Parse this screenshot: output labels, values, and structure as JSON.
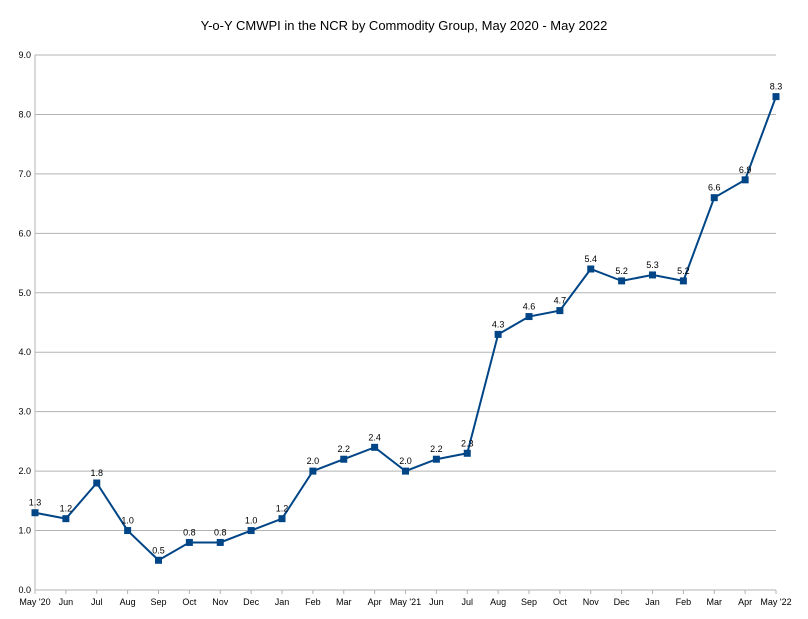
{
  "chart_data": {
    "type": "line",
    "title": "Y-o-Y CMWPI in the NCR by Commodity Group, May 2020 - May 2022",
    "xlabel": "",
    "ylabel": "",
    "ylim": [
      0,
      9
    ],
    "yticks": [
      "0.0",
      "1.0",
      "2.0",
      "3.0",
      "4.0",
      "5.0",
      "6.0",
      "7.0",
      "8.0",
      "9.0"
    ],
    "grid": true,
    "legend": "none",
    "categories": [
      "May '20",
      "Jun",
      "Jul",
      "Aug",
      "Sep",
      "Oct",
      "Nov",
      "Dec",
      "Jan",
      "Feb",
      "Mar",
      "Apr",
      "May '21",
      "Jun",
      "Jul",
      "Aug",
      "Sep",
      "Oct",
      "Nov",
      "Dec",
      "Jan",
      "Feb",
      "Mar",
      "Apr",
      "May '22"
    ],
    "series": [
      {
        "values": [
          1.3,
          1.2,
          1.8,
          1.0,
          0.5,
          0.8,
          0.8,
          1.0,
          1.2,
          2.0,
          2.2,
          2.4,
          2.0,
          2.2,
          2.3,
          4.3,
          4.6,
          4.7,
          5.4,
          5.2,
          5.3,
          5.2,
          6.6,
          6.9,
          8.3
        ],
        "labels": [
          "1.3",
          "1.2",
          "1.8",
          "1.0",
          "0.5",
          "0.8",
          "0.8",
          "1.0",
          "1.2",
          "2.0",
          "2.2",
          "2.4",
          "2.0",
          "2.2",
          "2.3",
          "4.3",
          "4.6",
          "4.7",
          "5.4",
          "5.2",
          "5.3",
          "5.2",
          "6.6",
          "6.9",
          "8.3"
        ],
        "color": "#004586"
      }
    ],
    "gridColor": "#b3b3b3"
  }
}
